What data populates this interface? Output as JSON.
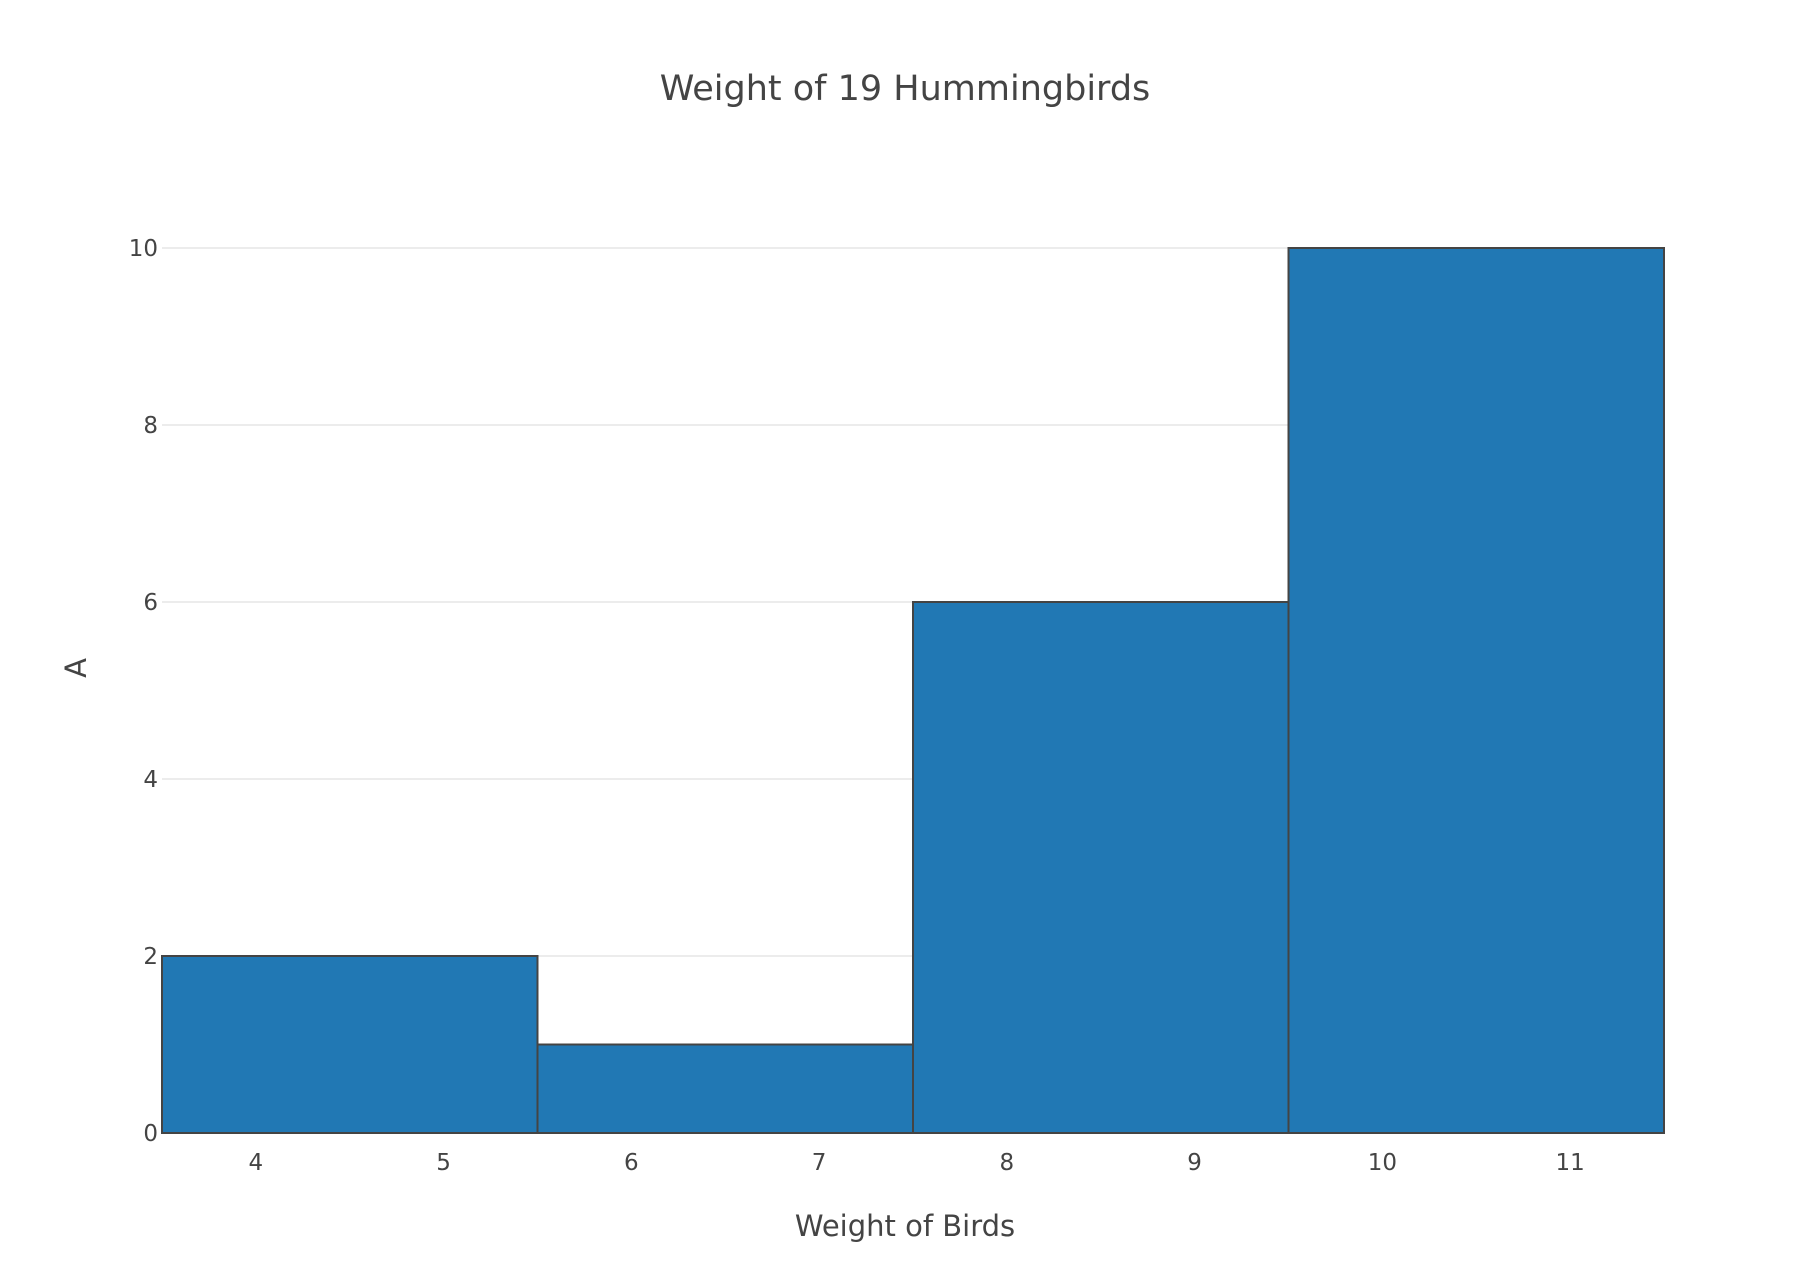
{
  "chart_data": {
    "type": "bar",
    "title": "Weight of 19 Hummingbirds",
    "xlabel": "Weight of Birds",
    "ylabel": "A",
    "bins": [
      {
        "start": 3.5,
        "end": 5.5,
        "count": 2
      },
      {
        "start": 5.5,
        "end": 7.5,
        "count": 1
      },
      {
        "start": 7.5,
        "end": 9.5,
        "count": 6
      },
      {
        "start": 9.5,
        "end": 11.5,
        "count": 10
      }
    ],
    "xlim": [
      3.5,
      11.5
    ],
    "ylim": [
      0,
      10
    ],
    "x_ticks": [
      "4",
      "5",
      "6",
      "7",
      "8",
      "9",
      "10",
      "11"
    ],
    "y_ticks": [
      "0",
      "2",
      "4",
      "6",
      "8",
      "10"
    ],
    "grid": "horizontal",
    "colors": {
      "bar_fill": "#2178b4",
      "bar_outline": "#444444",
      "grid": "#e6e6e6",
      "text": "#444444"
    }
  }
}
